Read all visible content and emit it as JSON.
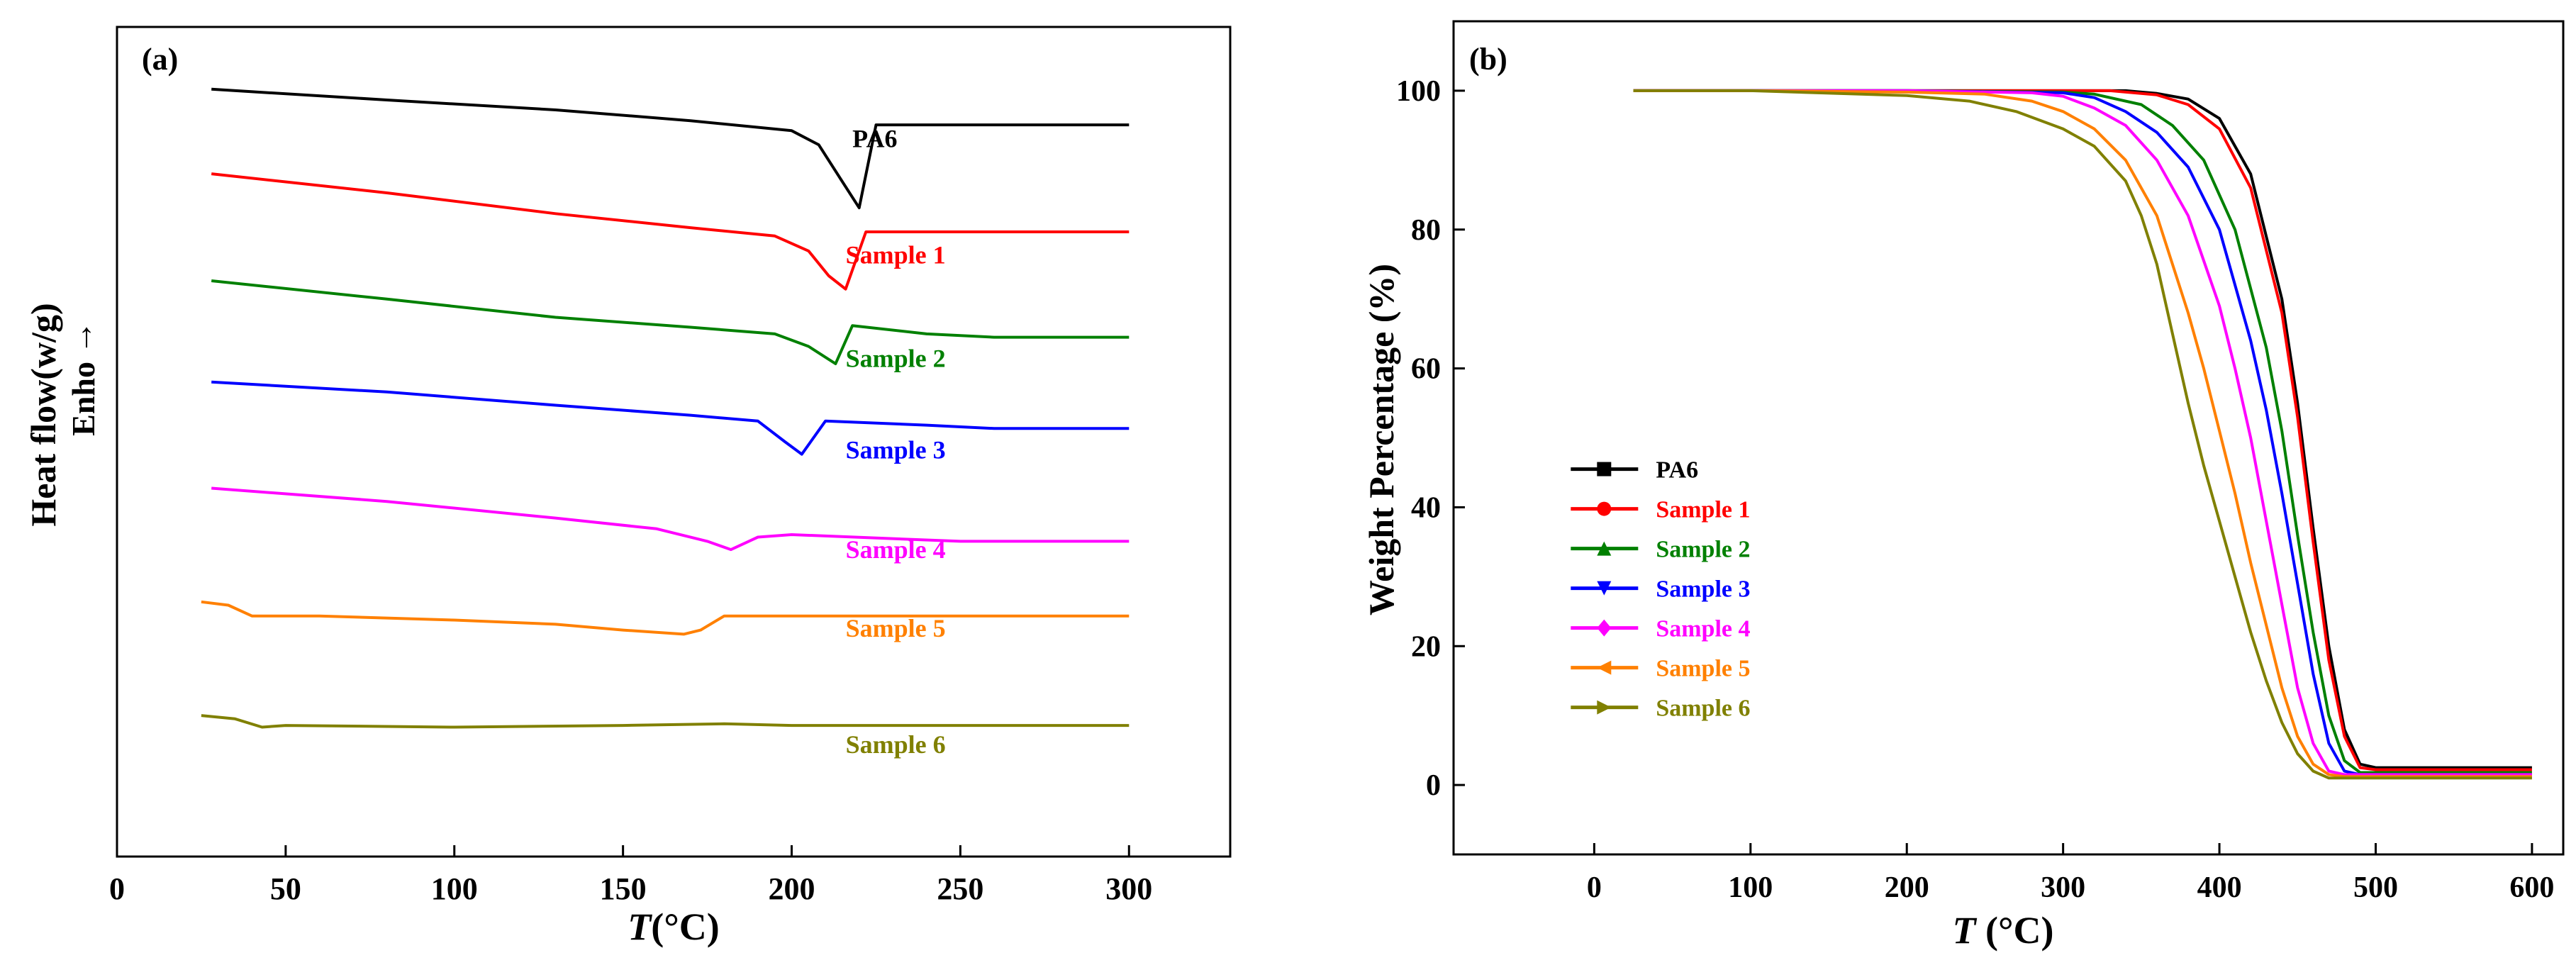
{
  "chart_data": [
    {
      "panel_label": "(a)",
      "type": "line",
      "title": "",
      "xlabel_italic": "T",
      "xlabel_rest": "(°C)",
      "ylabel_line1": "Heat flow(w/g)",
      "ylabel_line2": "Enho",
      "ylabel_arrow": "→",
      "xlim": [
        0,
        330
      ],
      "ylim": [
        0,
        100
      ],
      "xticks": [
        "0",
        "50",
        "100",
        "150",
        "200",
        "250",
        "300"
      ],
      "xtick_values": [
        0,
        50,
        100,
        150,
        200,
        250,
        300
      ],
      "y_axis_note": "stacked curves, arbitrary units (no y tick labels)",
      "series": [
        {
          "name": "PA6",
          "color": "#000000",
          "label_at": [
            218,
            85.5
          ],
          "x": [
            28,
            80,
            130,
            170,
            200,
            208,
            214,
            220,
            225,
            300
          ],
          "y": [
            92.5,
            91.2,
            90.0,
            88.7,
            87.5,
            85.8,
            82.0,
            78.2,
            88.2,
            88.2
          ]
        },
        {
          "name": "Sample 1",
          "color": "#ff0000",
          "label_at": [
            216,
            71.5
          ],
          "x": [
            28,
            80,
            130,
            170,
            195,
            205,
            211,
            216,
            222,
            260,
            300
          ],
          "y": [
            82.3,
            80.0,
            77.5,
            75.8,
            74.8,
            73.0,
            70.0,
            68.4,
            75.3,
            75.3,
            75.3
          ]
        },
        {
          "name": "Sample 2",
          "color": "#008000",
          "label_at": [
            216,
            59.0
          ],
          "x": [
            28,
            80,
            130,
            170,
            195,
            205,
            213,
            218,
            240,
            260,
            300
          ],
          "y": [
            69.4,
            67.2,
            65.0,
            63.8,
            63.0,
            61.5,
            59.4,
            64.0,
            63.0,
            62.6,
            62.6
          ]
        },
        {
          "name": "Sample 3",
          "color": "#0000ff",
          "label_at": [
            216,
            48.0
          ],
          "x": [
            28,
            80,
            130,
            170,
            190,
            198,
            203,
            210,
            240,
            260,
            300
          ],
          "y": [
            57.2,
            56.0,
            54.4,
            53.2,
            52.5,
            50.0,
            48.5,
            52.5,
            52.0,
            51.6,
            51.6
          ]
        },
        {
          "name": "Sample 4",
          "color": "#ff00ff",
          "label_at": [
            216,
            36.0
          ],
          "x": [
            28,
            80,
            130,
            160,
            175,
            182,
            190,
            200,
            250,
            300
          ],
          "y": [
            44.4,
            42.8,
            40.8,
            39.5,
            38.0,
            37.0,
            38.5,
            38.8,
            38.0,
            38.0
          ]
        },
        {
          "name": "Sample 5",
          "color": "#ff8000",
          "label_at": [
            216,
            26.5
          ],
          "x": [
            25,
            33,
            40,
            60,
            100,
            130,
            150,
            168,
            173,
            180,
            200,
            300
          ],
          "y": [
            30.7,
            30.3,
            29.0,
            29.0,
            28.5,
            28.0,
            27.3,
            26.8,
            27.3,
            29.0,
            29.0,
            29.0
          ]
        },
        {
          "name": "Sample 6",
          "color": "#808000",
          "label_at": [
            216,
            12.5
          ],
          "x": [
            25,
            35,
            43,
            50,
            100,
            150,
            180,
            200,
            300
          ],
          "y": [
            17.0,
            16.6,
            15.6,
            15.8,
            15.6,
            15.8,
            16.0,
            15.8,
            15.8
          ]
        }
      ]
    },
    {
      "panel_label": "(b)",
      "type": "line",
      "title": "",
      "xlabel_italic": "T",
      "xlabel_rest": " (°C)",
      "ylabel": "Weight Percentage (%)",
      "xlim": [
        -90,
        620
      ],
      "ylim": [
        -10,
        110
      ],
      "xticks": [
        "0",
        "100",
        "200",
        "300",
        "400",
        "500",
        "600"
      ],
      "xtick_values": [
        0,
        100,
        200,
        300,
        400,
        500,
        600
      ],
      "yticks": [
        "0",
        "20",
        "40",
        "60",
        "80",
        "100"
      ],
      "ytick_values": [
        0,
        20,
        40,
        60,
        80,
        100
      ],
      "legend_position": "center-left",
      "series": [
        {
          "name": "PA6",
          "color": "#000000",
          "marker": "square",
          "x": [
            25,
            100,
            200,
            300,
            340,
            360,
            380,
            400,
            420,
            440,
            450,
            460,
            470,
            480,
            490,
            500,
            600
          ],
          "y": [
            100,
            100,
            100,
            100,
            100,
            99.6,
            98.8,
            96,
            88,
            70,
            55,
            37,
            20,
            8,
            3,
            2.5,
            2.5
          ]
        },
        {
          "name": "Sample 1",
          "color": "#ff0000",
          "marker": "circle",
          "x": [
            25,
            100,
            200,
            300,
            330,
            360,
            380,
            400,
            420,
            440,
            450,
            460,
            470,
            480,
            490,
            500,
            600
          ],
          "y": [
            100,
            100,
            100,
            100,
            100,
            99.4,
            98,
            94.5,
            86,
            68,
            53,
            35,
            18,
            7,
            2.5,
            2.2,
            2.2
          ]
        },
        {
          "name": "Sample 2",
          "color": "#008000",
          "marker": "triangle-up",
          "x": [
            25,
            100,
            200,
            300,
            320,
            350,
            370,
            390,
            410,
            430,
            440,
            450,
            460,
            470,
            480,
            490,
            600
          ],
          "y": [
            100,
            100,
            100,
            99.8,
            99.5,
            98,
            95,
            90,
            80,
            63,
            51,
            36,
            22,
            10,
            3.5,
            1.8,
            1.8
          ]
        },
        {
          "name": "Sample 3",
          "color": "#0000ff",
          "marker": "triangle-down",
          "x": [
            25,
            100,
            200,
            300,
            320,
            340,
            360,
            380,
            400,
            420,
            430,
            440,
            450,
            460,
            470,
            480,
            490,
            600
          ],
          "y": [
            100,
            100,
            100,
            99.7,
            99,
            97,
            94,
            89,
            80,
            64,
            54,
            42,
            29,
            16,
            6,
            2,
            1.5,
            1.5
          ]
        },
        {
          "name": "Sample 4",
          "color": "#ff00ff",
          "marker": "diamond",
          "x": [
            25,
            100,
            200,
            280,
            300,
            320,
            340,
            360,
            380,
            400,
            410,
            420,
            430,
            440,
            450,
            460,
            470,
            480,
            600
          ],
          "y": [
            100,
            100,
            100,
            99.7,
            99.2,
            97.5,
            95,
            90,
            82,
            69,
            60,
            50,
            38,
            26,
            14,
            6,
            2,
            1.5,
            1.5
          ]
        },
        {
          "name": "Sample 5",
          "color": "#ff8000",
          "marker": "triangle-left",
          "x": [
            25,
            100,
            200,
            250,
            280,
            300,
            320,
            340,
            360,
            380,
            390,
            400,
            410,
            420,
            430,
            440,
            450,
            460,
            470,
            480,
            600
          ],
          "y": [
            100,
            100,
            99.8,
            99.5,
            98.5,
            97,
            94.5,
            90,
            82,
            68,
            60,
            51,
            42,
            32,
            23,
            14,
            7,
            3,
            1.5,
            1.2,
            1.2
          ]
        },
        {
          "name": "Sample 6",
          "color": "#808000",
          "marker": "triangle-right",
          "x": [
            25,
            100,
            200,
            240,
            270,
            300,
            320,
            340,
            350,
            360,
            370,
            380,
            390,
            400,
            410,
            420,
            430,
            440,
            450,
            460,
            470,
            480,
            600
          ],
          "y": [
            100,
            100,
            99.3,
            98.5,
            97,
            94.5,
            92,
            87,
            82,
            75,
            65,
            55,
            46,
            38,
            30,
            22,
            15,
            9,
            4.5,
            2,
            1,
            1,
            1
          ]
        }
      ]
    }
  ]
}
